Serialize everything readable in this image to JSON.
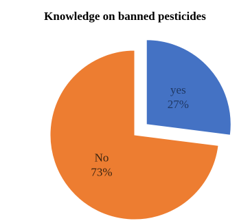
{
  "chart_data": {
    "type": "pie",
    "title": "Knowledge on banned pesticides",
    "slices": [
      {
        "label": "yes",
        "value": 27,
        "value_label": "27%",
        "color": "#4472C4",
        "exploded": true
      },
      {
        "label": "No",
        "value": 73,
        "value_label": "73%",
        "color": "#ED7D31",
        "exploded": false
      }
    ],
    "label_colors": {
      "yes": "#1F3864",
      "No": "#3b2410"
    },
    "start_angle_degrees": 0,
    "direction": "clockwise",
    "legend": "none"
  }
}
